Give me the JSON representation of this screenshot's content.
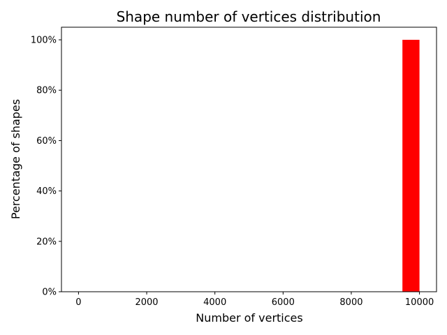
{
  "chart_data": {
    "type": "bar",
    "title": "Shape number of vertices distribution",
    "xlabel": "Number of vertices",
    "ylabel": "Percentage of shapes",
    "xlim": [
      -500,
      10500
    ],
    "ylim": [
      0,
      105
    ],
    "x_ticks": [
      0,
      2000,
      4000,
      6000,
      8000,
      10000
    ],
    "x_tick_labels": [
      "0",
      "2000",
      "4000",
      "6000",
      "8000",
      "10000"
    ],
    "y_ticks": [
      0,
      20,
      40,
      60,
      80,
      100
    ],
    "y_tick_labels": [
      "0%",
      "20%",
      "40%",
      "60%",
      "80%",
      "100%"
    ],
    "bins": [
      {
        "x_start": 9500,
        "x_end": 10000,
        "value": 100
      }
    ],
    "bar_color": "#ff0000",
    "grid": false,
    "legend": "none"
  }
}
